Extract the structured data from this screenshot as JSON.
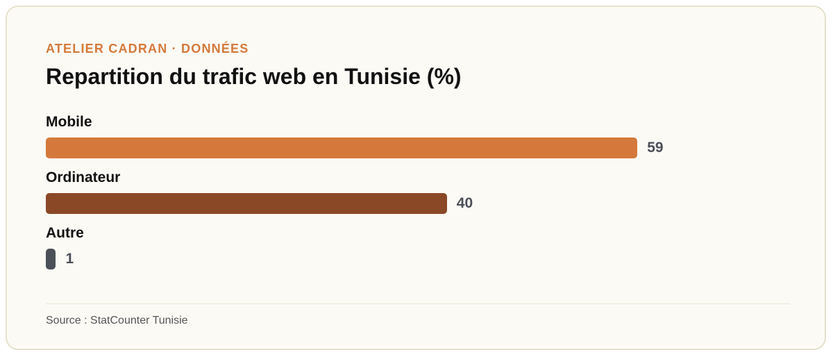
{
  "chart_data": {
    "type": "bar",
    "orientation": "horizontal",
    "kicker": "ATELIER CADRAN · DONNÉES",
    "title": "Repartition du trafic web en Tunisie (%)",
    "categories": [
      "Mobile",
      "Ordinateur",
      "Autre"
    ],
    "values": [
      59,
      40,
      1
    ],
    "colors": [
      "#d4793b",
      "#8b4826",
      "#4b5059"
    ],
    "source": "Source : StatCounter Tunisie"
  }
}
